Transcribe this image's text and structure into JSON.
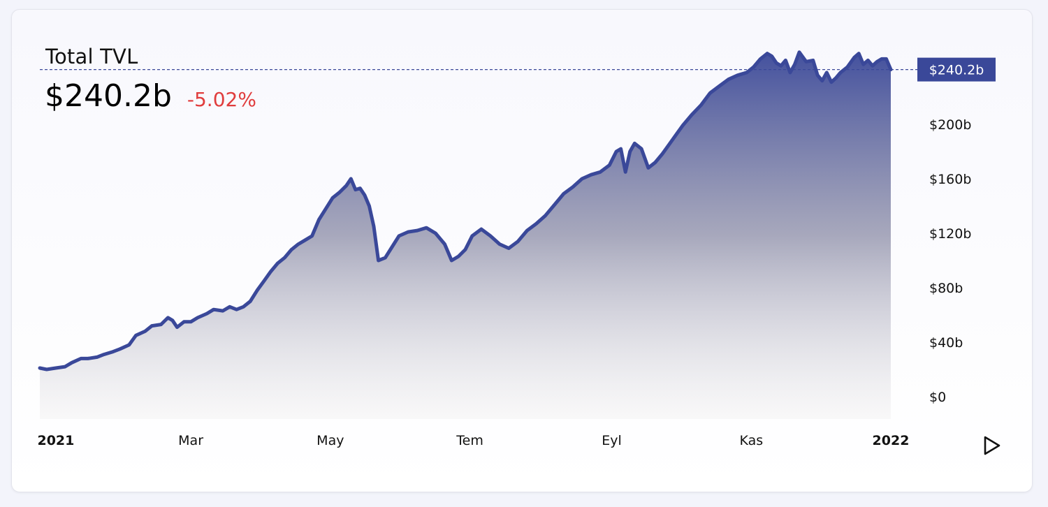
{
  "header": {
    "title": "Total TVL",
    "value": "$240.2b",
    "change": "-5.02%"
  },
  "colors": {
    "line": "#3a4899",
    "change_negative": "#e03d3d",
    "tag_background": "#3a4899"
  },
  "current_price_tag": "$240.2b",
  "play_icon": "play-icon",
  "chart_data": {
    "type": "area",
    "title": "Total TVL",
    "xlabel": "",
    "ylabel": "",
    "ylim": [
      0,
      260
    ],
    "y_unit": "billion USD",
    "y_ticks": [
      {
        "value": 0,
        "label": "$0"
      },
      {
        "value": 40,
        "label": "$40b"
      },
      {
        "value": 80,
        "label": "$80b"
      },
      {
        "value": 120,
        "label": "$120b"
      },
      {
        "value": 160,
        "label": "$160b"
      },
      {
        "value": 200,
        "label": "$200b"
      }
    ],
    "x_ticks": [
      {
        "date": "2021-01-01",
        "label": "2021",
        "bold": true
      },
      {
        "date": "2021-03-01",
        "label": "Mar",
        "bold": false
      },
      {
        "date": "2021-05-01",
        "label": "May",
        "bold": false
      },
      {
        "date": "2021-07-01",
        "label": "Tem",
        "bold": false
      },
      {
        "date": "2021-09-01",
        "label": "Eyl",
        "bold": false
      },
      {
        "date": "2021-11-01",
        "label": "Kas",
        "bold": false
      },
      {
        "date": "2022-01-01",
        "label": "2022",
        "bold": true
      }
    ],
    "xlim": [
      "2020-12-25",
      "2022-01-01"
    ],
    "current_value": 240.2,
    "series": [
      {
        "x": [
          "2020-12-25",
          "2020-12-28",
          "2021-01-01",
          "2021-01-05",
          "2021-01-08",
          "2021-01-12",
          "2021-01-15",
          "2021-01-19",
          "2021-01-22",
          "2021-01-26",
          "2021-01-29",
          "2021-02-02",
          "2021-02-05",
          "2021-02-09",
          "2021-02-12",
          "2021-02-16",
          "2021-02-19",
          "2021-02-21",
          "2021-02-23",
          "2021-02-26",
          "2021-03-01",
          "2021-03-04",
          "2021-03-08",
          "2021-03-11",
          "2021-03-15",
          "2021-03-18",
          "2021-03-21",
          "2021-03-24",
          "2021-03-27",
          "2021-03-30",
          "2021-04-02",
          "2021-04-05",
          "2021-04-08",
          "2021-04-11",
          "2021-04-14",
          "2021-04-17",
          "2021-04-20",
          "2021-04-23",
          "2021-04-26",
          "2021-04-29",
          "2021-05-02",
          "2021-05-05",
          "2021-05-08",
          "2021-05-10",
          "2021-05-12",
          "2021-05-14",
          "2021-05-16",
          "2021-05-18",
          "2021-05-20",
          "2021-05-22",
          "2021-05-25",
          "2021-05-28",
          "2021-05-31",
          "2021-06-04",
          "2021-06-08",
          "2021-06-12",
          "2021-06-16",
          "2021-06-20",
          "2021-06-23",
          "2021-06-26",
          "2021-06-29",
          "2021-07-02",
          "2021-07-06",
          "2021-07-10",
          "2021-07-14",
          "2021-07-18",
          "2021-07-22",
          "2021-07-26",
          "2021-07-30",
          "2021-08-03",
          "2021-08-07",
          "2021-08-11",
          "2021-08-15",
          "2021-08-19",
          "2021-08-23",
          "2021-08-27",
          "2021-08-31",
          "2021-09-03",
          "2021-09-05",
          "2021-09-07",
          "2021-09-09",
          "2021-09-11",
          "2021-09-14",
          "2021-09-17",
          "2021-09-20",
          "2021-09-23",
          "2021-09-26",
          "2021-09-29",
          "2021-10-02",
          "2021-10-06",
          "2021-10-10",
          "2021-10-14",
          "2021-10-18",
          "2021-10-22",
          "2021-10-26",
          "2021-10-30",
          "2021-11-02",
          "2021-11-05",
          "2021-11-08",
          "2021-11-10",
          "2021-11-12",
          "2021-11-14",
          "2021-11-16",
          "2021-11-18",
          "2021-11-20",
          "2021-11-22",
          "2021-11-25",
          "2021-11-28",
          "2021-11-30",
          "2021-12-02",
          "2021-12-04",
          "2021-12-06",
          "2021-12-08",
          "2021-12-10",
          "2021-12-13",
          "2021-12-16",
          "2021-12-18",
          "2021-12-20",
          "2021-12-22",
          "2021-12-24",
          "2021-12-26",
          "2021-12-28",
          "2021-12-30",
          "2022-01-01"
        ],
        "y": [
          21,
          20,
          21,
          22,
          25,
          28,
          28,
          29,
          31,
          33,
          35,
          38,
          45,
          48,
          52,
          53,
          58,
          56,
          51,
          55,
          55,
          58,
          61,
          64,
          63,
          66,
          64,
          66,
          70,
          78,
          85,
          92,
          98,
          102,
          108,
          112,
          115,
          118,
          130,
          138,
          146,
          150,
          155,
          160,
          152,
          153,
          148,
          140,
          125,
          100,
          102,
          110,
          118,
          121,
          122,
          124,
          120,
          112,
          100,
          103,
          108,
          118,
          123,
          118,
          112,
          109,
          114,
          122,
          127,
          133,
          141,
          149,
          154,
          160,
          163,
          165,
          170,
          180,
          182,
          165,
          180,
          186,
          182,
          168,
          172,
          178,
          185,
          192,
          199,
          207,
          214,
          223,
          228,
          233,
          236,
          238,
          242,
          248,
          252,
          250,
          245,
          243,
          247,
          238,
          244,
          253,
          246,
          247,
          236,
          232,
          238,
          231,
          234,
          238,
          242,
          249,
          252,
          244,
          247,
          243,
          246,
          248,
          248,
          240.2
        ]
      }
    ]
  }
}
